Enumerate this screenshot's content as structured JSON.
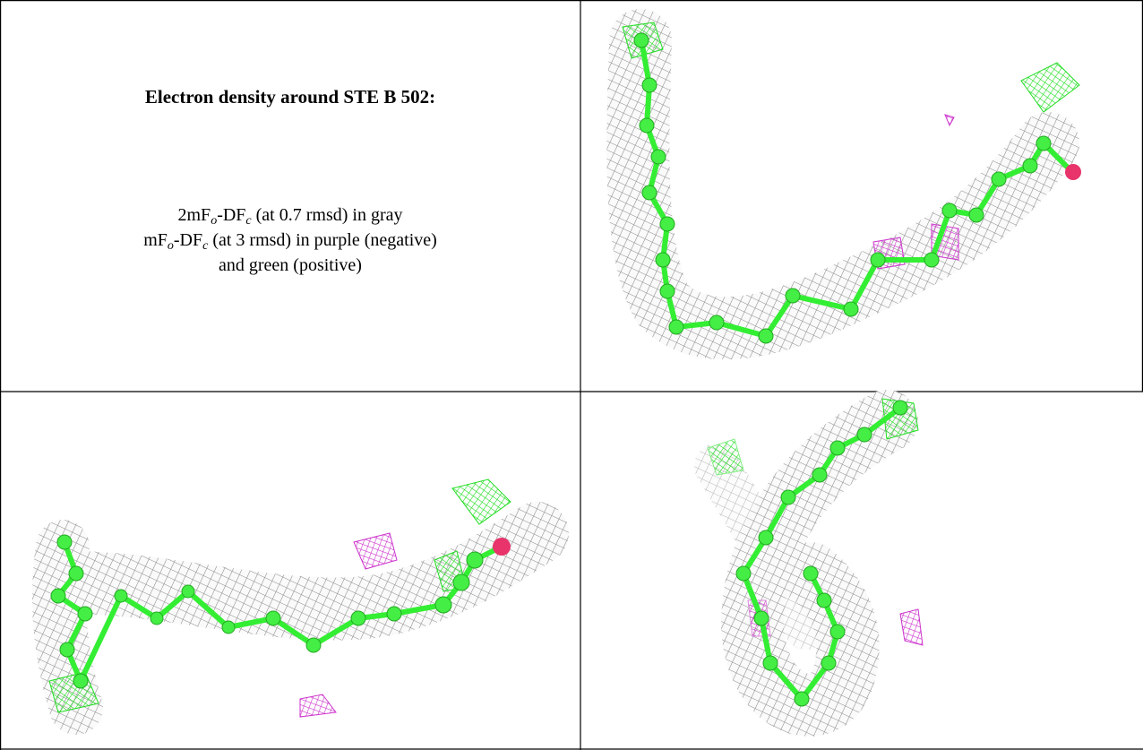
{
  "legend": {
    "title": "Electron density around STE B 502:",
    "lines": [
      [
        "2mF",
        "o",
        "-DF",
        "c",
        " (at 0.7 rmsd) in gray"
      ],
      [
        "mF",
        "o",
        "-DF",
        "c",
        " (at 3 rmsd) in purple (negative)"
      ],
      [
        "and green (positive)"
      ]
    ]
  }
}
